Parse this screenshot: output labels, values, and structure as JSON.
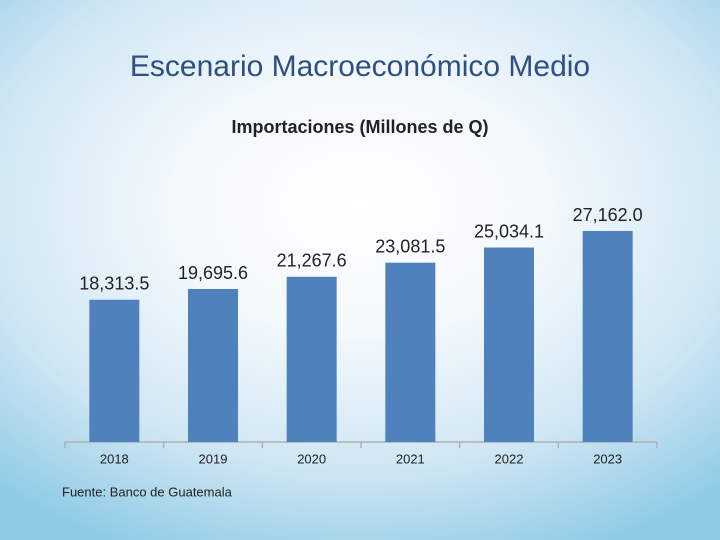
{
  "chart_data": {
    "type": "bar",
    "heading": "Escenario Macroeconómico Medio",
    "title": "Importaciones (Millones de Q)",
    "categories": [
      "2018",
      "2019",
      "2020",
      "2021",
      "2022",
      "2023"
    ],
    "values": [
      18313.5,
      19695.6,
      21267.6,
      23081.5,
      25034.1,
      27162.0
    ],
    "value_labels": [
      "18,313.5",
      "19,695.6",
      "21,267.6",
      "23,081.5",
      "25,034.1",
      "27,162.0"
    ],
    "color": "#4f81bd",
    "source": "Fuente: Banco de Guatemala"
  }
}
